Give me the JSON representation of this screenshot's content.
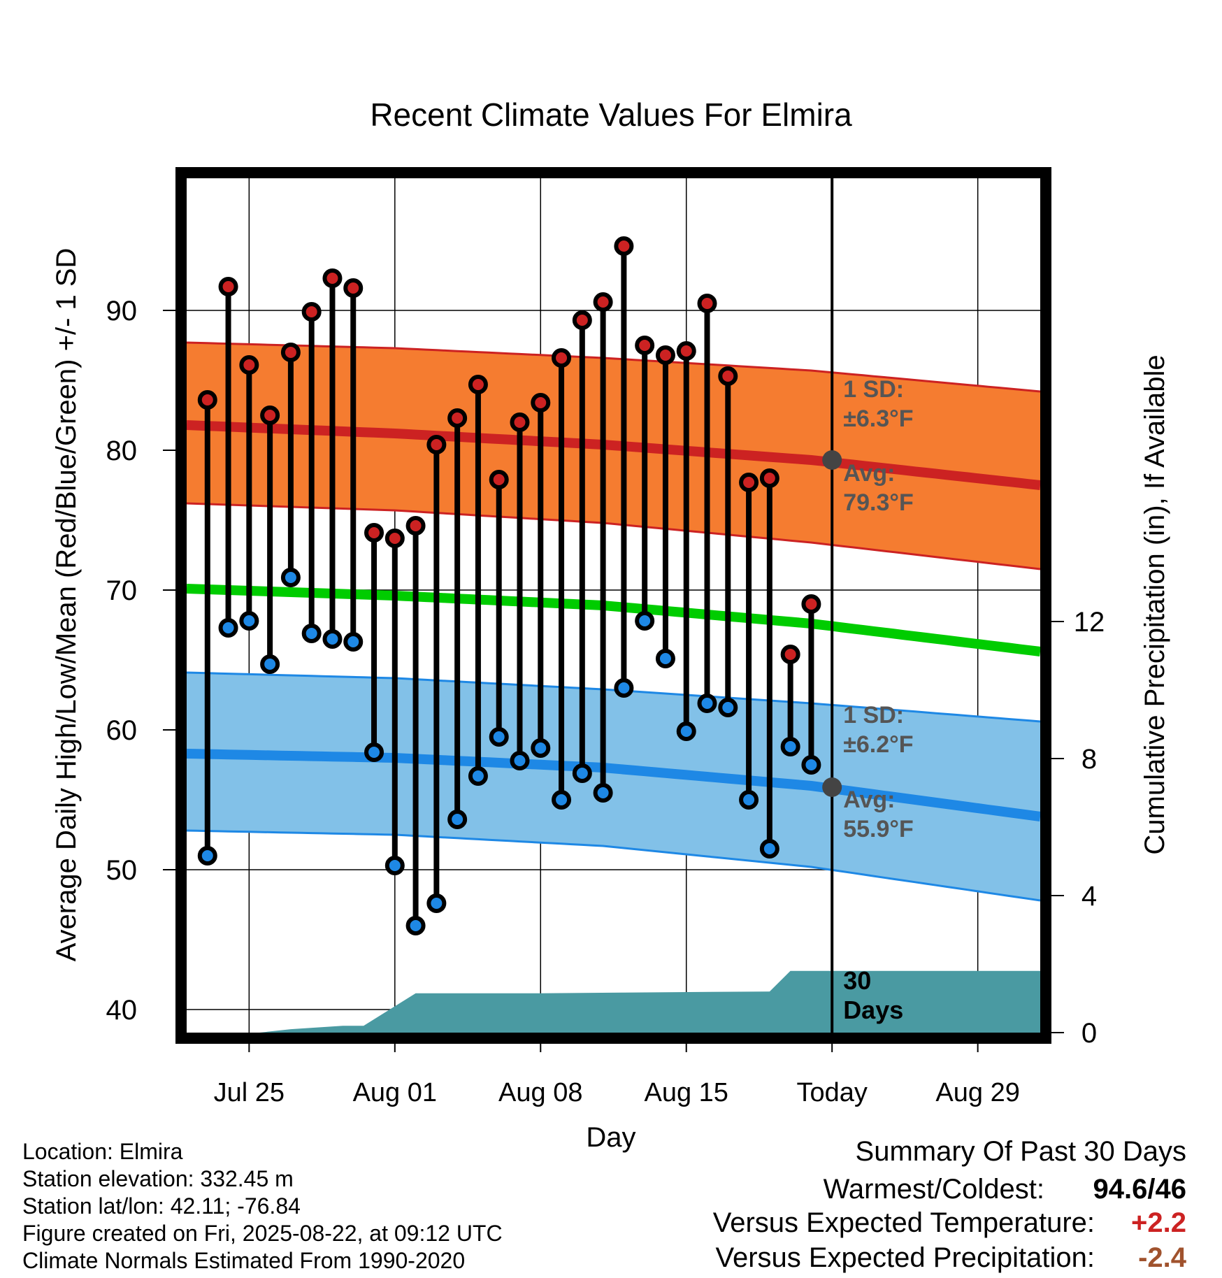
{
  "chart_data": {
    "type": "line",
    "title": "Recent Climate Values For Elmira",
    "xlabel": "Day",
    "ylabel_left": "Average Daily High/Low/Mean (Red/Blue/Green) +/- 1 SD",
    "ylabel_right": "Cumulative Precipitation (in), If Available",
    "x_tick_labels": [
      "Jul 25",
      "Aug 01",
      "Aug 08",
      "Aug 15",
      "Today",
      "Aug 29"
    ],
    "x_tick_days": [
      3,
      10,
      17,
      24,
      31,
      38
    ],
    "x_range_days": [
      0,
      41
    ],
    "ylim_left": [
      38,
      100
    ],
    "yticks_left": [
      40,
      50,
      60,
      70,
      80,
      90
    ],
    "ylim_right": [
      0,
      24
    ],
    "yticks_right": [
      0,
      4,
      8,
      12
    ],
    "grid": true,
    "colors": {
      "high": "#cc2222",
      "low": "#1e88e5",
      "mean": "#00cc00",
      "high_band": "#f57c30",
      "low_band": "#82c1e8",
      "precip": "#4a9aa2",
      "marker_dot": "#444444",
      "anomaly_temp": "#cc2222",
      "anomaly_precip": "#a0522d"
    },
    "normals": {
      "days": [
        0,
        10,
        20,
        30,
        41
      ],
      "high_mean": [
        81.8,
        81.2,
        80.4,
        79.3,
        77.5
      ],
      "high_upper": [
        87.7,
        87.3,
        86.6,
        85.7,
        84.2
      ],
      "high_lower": [
        76.2,
        75.7,
        74.8,
        73.4,
        71.5
      ],
      "low_mean": [
        58.3,
        58.0,
        57.3,
        56.0,
        53.8
      ],
      "low_upper": [
        64.1,
        63.7,
        62.9,
        61.9,
        60.6
      ],
      "low_lower": [
        52.8,
        52.5,
        51.7,
        50.2,
        47.8
      ],
      "mean": [
        70.1,
        69.6,
        68.9,
        67.6,
        65.6
      ]
    },
    "daily": {
      "days": [
        1,
        2,
        3,
        4,
        5,
        6,
        7,
        8,
        9,
        10,
        11,
        12,
        13,
        14,
        15,
        16,
        17,
        18,
        19,
        20,
        21,
        22,
        23,
        24,
        25,
        26,
        27,
        28,
        29,
        30
      ],
      "high": [
        83.6,
        91.7,
        86.1,
        82.5,
        87.0,
        89.9,
        92.3,
        91.6,
        74.1,
        73.7,
        74.6,
        80.4,
        82.3,
        84.7,
        77.9,
        82.0,
        83.4,
        86.6,
        89.3,
        90.6,
        94.6,
        87.5,
        86.8,
        87.1,
        90.5,
        85.3,
        77.7,
        78.0,
        65.4,
        69.0
      ],
      "low": [
        51.0,
        67.3,
        67.8,
        64.7,
        70.9,
        66.9,
        66.5,
        66.3,
        58.4,
        50.3,
        46.0,
        47.6,
        53.6,
        56.7,
        59.5,
        57.8,
        58.7,
        55.0,
        56.9,
        55.5,
        63.0,
        67.8,
        65.1,
        59.9,
        61.9,
        61.6,
        55.0,
        51.5,
        58.8,
        57.5
      ]
    },
    "precip": {
      "days": [
        0,
        3.5,
        5,
        7.5,
        8.5,
        11,
        17,
        21,
        28,
        29,
        41
      ],
      "values": [
        0,
        0,
        0.1,
        0.2,
        0.2,
        1.15,
        1.15,
        1.17,
        1.2,
        1.8,
        1.8
      ]
    },
    "annotations": {
      "high_sd_line1": "1 SD:",
      "high_sd_line2": "±6.3°F",
      "high_avg_line1": "Avg:",
      "high_avg_line2": "79.3°F",
      "high_avg_value": 79.3,
      "low_sd_line1": "1 SD:",
      "low_sd_line2": "±6.2°F",
      "low_avg_line1": "Avg:",
      "low_avg_line2": "55.9°F",
      "low_avg_value": 55.9,
      "days_line1": "30",
      "days_line2": "Days"
    }
  },
  "info": {
    "location": "Location: Elmira",
    "elevation": "Station elevation: 332.45 m",
    "latlon": "Station lat/lon: 42.11; -76.84",
    "created": "Figure created on Fri, 2025-08-22, at 09:12 UTC",
    "normals": "Climate Normals Estimated From 1990-2020"
  },
  "summary": {
    "title": "Summary Of Past 30 Days",
    "warm_cold_label": "Warmest/Coldest:",
    "warm_cold_value": "94.6/46",
    "temp_label": "Versus Expected Temperature:",
    "temp_value": "+2.2",
    "precip_label": "Versus Expected Precipitation:",
    "precip_value": "-2.4"
  }
}
